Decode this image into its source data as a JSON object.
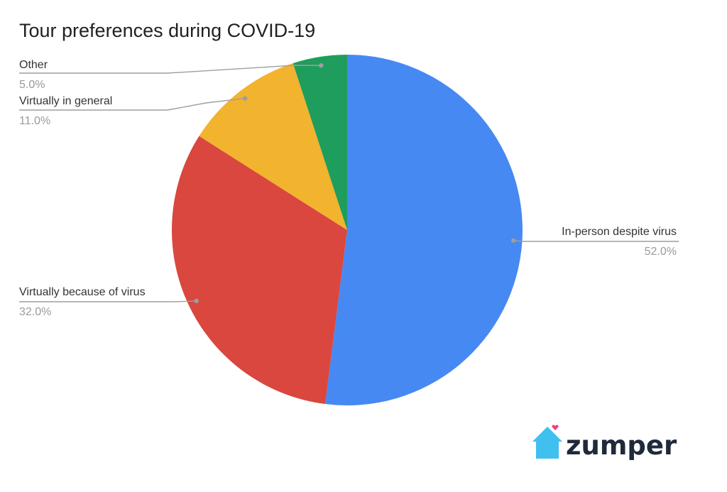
{
  "chart_data": {
    "type": "pie",
    "title": "Tour preferences during COVID-19",
    "slices": [
      {
        "label": "In-person despite virus",
        "value": 52.0,
        "display": "52.0%",
        "color": "#4689f2"
      },
      {
        "label": "Virtually because of virus",
        "value": 32.0,
        "display": "32.0%",
        "color": "#d9473e"
      },
      {
        "label": "Virtually in general",
        "value": 11.0,
        "display": "11.0%",
        "color": "#f2b32e"
      },
      {
        "label": "Other",
        "value": 5.0,
        "display": "5.0%",
        "color": "#1f9d5c"
      }
    ],
    "start_angle": "12 o'clock",
    "direction": "clockwise",
    "legend": "none"
  },
  "brand": {
    "name": "zumper",
    "icon": "house-icon",
    "icon_color": "#3fc0ee",
    "heart_color": "#ef3f86"
  }
}
